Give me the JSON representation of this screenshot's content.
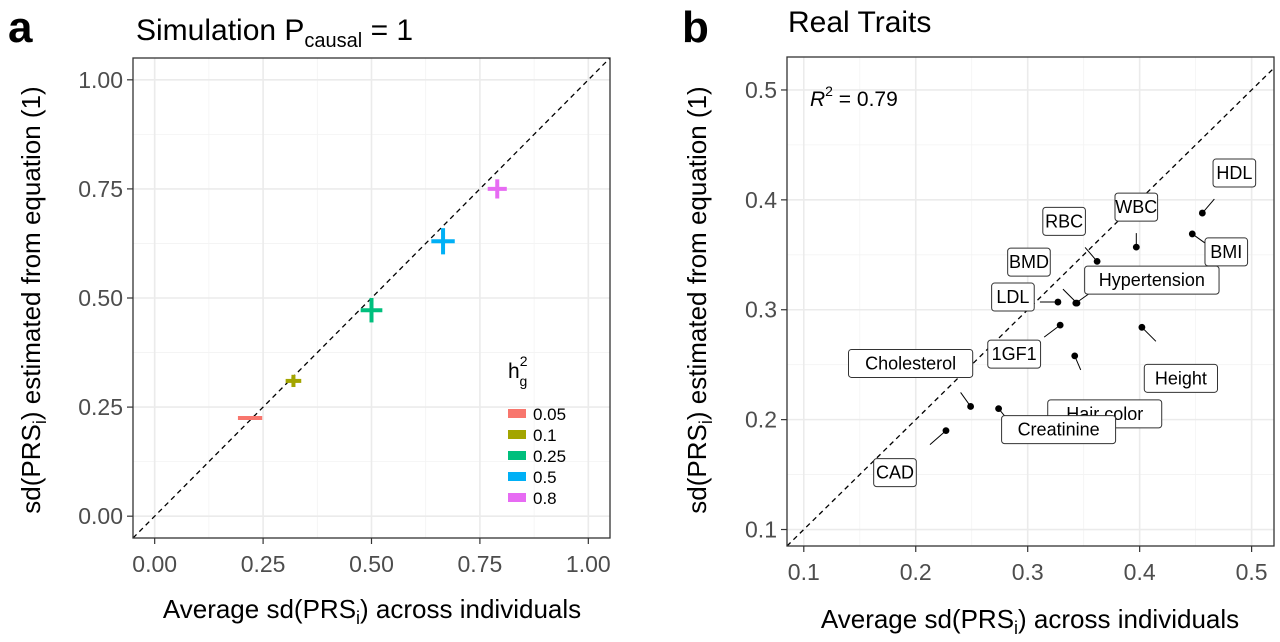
{
  "panels": [
    {
      "letter": "a",
      "title": {
        "main": "Simulation P",
        "sub": "causal",
        "tail": " = 1"
      },
      "xlabel": {
        "pre": "Average sd(",
        "hat": "PRS",
        "sub": "i",
        "post": ") across individuals"
      },
      "ylabel": {
        "pre": "sd(",
        "hat": "PRS",
        "sub": "i",
        "post": ") estimated from equation (1)"
      }
    },
    {
      "letter": "b",
      "title": {
        "main": "Real Traits"
      },
      "annotation": {
        "r": "R",
        "sup": "2",
        "tail": " = 0.79"
      },
      "xlabel": {
        "pre": "Average sd(",
        "hat": "PRS",
        "sub": "i",
        "post": ") across individuals"
      },
      "ylabel": {
        "pre": "sd(",
        "hat": "PRS",
        "sub": "i",
        "post": ") estimated from equation (1)"
      }
    }
  ],
  "chart_data": [
    {
      "type": "scatter",
      "xlim": [
        -0.05,
        1.05
      ],
      "ylim": [
        -0.05,
        1.05
      ],
      "xticks": [
        "0.00",
        "0.25",
        "0.50",
        "0.75",
        "1.00"
      ],
      "yticks": [
        "0.00",
        "0.25",
        "0.50",
        "0.75",
        "1.00"
      ],
      "reference_line": "y = x, dashed",
      "grid": true,
      "legend": {
        "title": {
          "base": "h",
          "sup": "2",
          "sub": "g"
        },
        "placement": "right-inside",
        "entries": [
          {
            "label": "0.05",
            "color": "#F8766D"
          },
          {
            "label": "0.1",
            "color": "#A3A500"
          },
          {
            "label": "0.25",
            "color": "#00BF7D"
          },
          {
            "label": "0.5",
            "color": "#00B0F6"
          },
          {
            "label": "0.8",
            "color": "#E76BF3"
          }
        ]
      },
      "points": [
        {
          "h2g": "0.05",
          "x": 0.22,
          "y": 0.225,
          "x_err": 0.028,
          "y_err": 0.003
        },
        {
          "h2g": "0.1",
          "x": 0.32,
          "y": 0.31,
          "x_err": 0.018,
          "y_err": 0.014
        },
        {
          "h2g": "0.25",
          "x": 0.5,
          "y": 0.472,
          "x_err": 0.025,
          "y_err": 0.028
        },
        {
          "h2g": "0.5",
          "x": 0.665,
          "y": 0.63,
          "x_err": 0.027,
          "y_err": 0.03
        },
        {
          "h2g": "0.8",
          "x": 0.79,
          "y": 0.75,
          "x_err": 0.022,
          "y_err": 0.022
        }
      ]
    },
    {
      "type": "scatter",
      "xlim": [
        0.085,
        0.52
      ],
      "ylim": [
        0.085,
        0.53
      ],
      "xticks": [
        "0.1",
        "0.2",
        "0.3",
        "0.4",
        "0.5"
      ],
      "yticks": [
        "0.1",
        "0.2",
        "0.3",
        "0.4",
        "0.5"
      ],
      "reference_line": "y = x, dashed",
      "grid": true,
      "r_squared": 0.79,
      "points": [
        {
          "label": "HDL",
          "x": 0.456,
          "y": 0.388
        },
        {
          "label": "BMI",
          "x": 0.447,
          "y": 0.369
        },
        {
          "label": "WBC",
          "x": 0.397,
          "y": 0.357
        },
        {
          "label": "RBC",
          "x": 0.362,
          "y": 0.344
        },
        {
          "label": "BMD",
          "x": 0.344,
          "y": 0.306
        },
        {
          "label": "Hypertension",
          "x": 0.343,
          "y": 0.306
        },
        {
          "label": "LDL",
          "x": 0.327,
          "y": 0.307
        },
        {
          "label": "1GF1",
          "x": 0.329,
          "y": 0.286
        },
        {
          "label": "Height",
          "x": 0.402,
          "y": 0.284
        },
        {
          "label": "Hair color",
          "x": 0.342,
          "y": 0.258
        },
        {
          "label": "Cholesterol",
          "x": 0.249,
          "y": 0.212
        },
        {
          "label": "Creatinine",
          "x": 0.274,
          "y": 0.21
        },
        {
          "label": "CAD",
          "x": 0.227,
          "y": 0.19
        }
      ]
    }
  ],
  "extra_colors": {
    "point_b": "#000000",
    "hypertension_dot": "#000000"
  }
}
